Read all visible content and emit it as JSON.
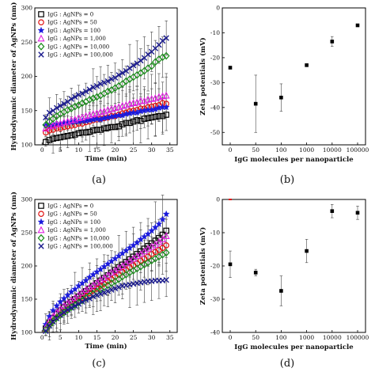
{
  "figure": {
    "panel_labels": [
      "(a)",
      "(b)",
      "(c)",
      "(d)"
    ]
  },
  "chart_data": [
    {
      "panel": "(a)",
      "type": "scatter",
      "xlabel": "Time (min)",
      "ylabel": "Hydrodynamic diameter of AgNPs (nm)",
      "xlim": [
        -2,
        37
      ],
      "ylim": [
        100,
        300
      ],
      "xticks": [
        0,
        5,
        10,
        15,
        20,
        25,
        30,
        35
      ],
      "yticks": [
        100,
        150,
        200,
        250,
        300
      ],
      "legend_position": "top-left",
      "x": [
        1,
        2,
        3,
        4,
        5,
        6,
        7,
        8,
        9,
        10,
        11,
        12,
        13,
        14,
        15,
        16,
        17,
        18,
        19,
        20,
        21,
        22,
        23,
        24,
        25,
        26,
        27,
        28,
        29,
        30,
        31,
        32,
        33,
        34
      ],
      "series": [
        {
          "name": "IgG : AgNPs = 0",
          "marker": "square-open",
          "color": "#000000",
          "values": [
            104,
            107,
            109,
            110,
            111,
            112,
            113,
            114,
            115,
            117,
            118,
            118,
            119,
            121,
            122,
            122,
            124,
            125,
            126,
            126,
            127,
            130,
            132,
            132,
            134,
            136,
            135,
            138,
            139,
            140,
            141,
            142,
            142,
            144
          ]
        },
        {
          "name": "IgG : AgNPs = 50",
          "marker": "circle-open",
          "color": "#e01010",
          "values": [
            118,
            121,
            122,
            124,
            124,
            126,
            127,
            128,
            129,
            131,
            131,
            133,
            134,
            136,
            137,
            138,
            139,
            140,
            142,
            142,
            144,
            146,
            147,
            149,
            150,
            151,
            153,
            153,
            155,
            156,
            157,
            158,
            161,
            160
          ]
        },
        {
          "name": "IgG : AgNPs = 100",
          "marker": "star",
          "color": "#1a1adc",
          "values": [
            128,
            129,
            129,
            131,
            131,
            132,
            132,
            133,
            134,
            134,
            135,
            135,
            136,
            137,
            138,
            137,
            139,
            140,
            141,
            142,
            143,
            143,
            145,
            146,
            147,
            147,
            149,
            150,
            151,
            151,
            152,
            154,
            155,
            155
          ]
        },
        {
          "name": "IgG : AgNPs = 1,000",
          "marker": "triangle-open",
          "color": "#e020e0",
          "values": [
            124,
            127,
            128,
            130,
            131,
            133,
            134,
            136,
            137,
            139,
            140,
            142,
            143,
            145,
            146,
            148,
            149,
            151,
            152,
            154,
            155,
            157,
            158,
            160,
            161,
            162,
            164,
            164,
            166,
            167,
            168,
            170,
            171,
            172
          ]
        },
        {
          "name": "IgG : AgNPs = 10,000",
          "marker": "diamond-open",
          "color": "#1a8c1a",
          "values": [
            129,
            134,
            138,
            142,
            145,
            148,
            151,
            153,
            156,
            158,
            161,
            163,
            166,
            168,
            170,
            172,
            175,
            178,
            180,
            183,
            186,
            189,
            193,
            196,
            199,
            202,
            205,
            208,
            212,
            215,
            221,
            225,
            228,
            230
          ]
        },
        {
          "name": "IgG : AgNPs = 100,000",
          "marker": "x",
          "color": "#1a1a8c",
          "values": [
            140,
            147,
            150,
            154,
            157,
            160,
            163,
            167,
            170,
            173,
            175,
            178,
            181,
            184,
            186,
            189,
            191,
            193,
            196,
            198,
            202,
            205,
            208,
            212,
            216,
            219,
            223,
            227,
            232,
            236,
            241,
            246,
            252,
            256
          ]
        }
      ]
    },
    {
      "panel": "(b)",
      "type": "scatter",
      "xlabel": "IgG molecules per nanoparticle",
      "ylabel": "Zeta potentials (mV)",
      "categories": [
        "0",
        "50",
        "100",
        "1000",
        "10000",
        "100000"
      ],
      "ylim": [
        -55,
        0
      ],
      "yticks": [
        0,
        -10,
        -20,
        -30,
        -40,
        -50
      ],
      "values": [
        -24,
        -38.5,
        -36,
        -23,
        -13.5,
        -7
      ],
      "errors": [
        0,
        11.5,
        5.5,
        0,
        2,
        0
      ]
    },
    {
      "panel": "(c)",
      "type": "scatter",
      "xlabel": "Time (min)",
      "ylabel": "Hydrodynamic diameter of AgNPs (nm)",
      "xlim": [
        -2,
        37
      ],
      "ylim": [
        100,
        300
      ],
      "xticks": [
        0,
        5,
        10,
        15,
        20,
        25,
        30,
        35
      ],
      "yticks": [
        100,
        150,
        200,
        250,
        300
      ],
      "legend_position": "top-left",
      "x": [
        1,
        2,
        3,
        4,
        5,
        6,
        7,
        8,
        9,
        10,
        11,
        12,
        13,
        14,
        15,
        16,
        17,
        18,
        19,
        20,
        21,
        22,
        23,
        24,
        25,
        26,
        27,
        28,
        29,
        30,
        31,
        32,
        33,
        34
      ],
      "series": [
        {
          "name": "IgG : AgNPs = 0",
          "marker": "square-open",
          "color": "#000000",
          "values": [
            106,
            115,
            122,
            128,
            133,
            138,
            142,
            146,
            150,
            154,
            158,
            162,
            166,
            170,
            174,
            178,
            182,
            186,
            190,
            194,
            198,
            202,
            206,
            210,
            214,
            218,
            222,
            226,
            230,
            234,
            238,
            242,
            247,
            253
          ]
        },
        {
          "name": "IgG : AgNPs = 50",
          "marker": "circle-open",
          "color": "#e01010",
          "values": [
            104,
            112,
            118,
            123,
            128,
            132,
            136,
            140,
            144,
            148,
            152,
            155,
            159,
            163,
            166,
            170,
            173,
            177,
            180,
            184,
            187,
            191,
            194,
            198,
            201,
            204,
            208,
            211,
            214,
            218,
            221,
            224,
            227,
            231
          ]
        },
        {
          "name": "IgG : AgNPs = 100",
          "marker": "star",
          "color": "#1a1adc",
          "values": [
            112,
            124,
            133,
            140,
            146,
            151,
            156,
            161,
            165,
            170,
            174,
            178,
            183,
            187,
            191,
            195,
            199,
            203,
            207,
            211,
            215,
            219,
            223,
            227,
            231,
            235,
            240,
            244,
            248,
            253,
            258,
            263,
            270,
            278
          ]
        },
        {
          "name": "IgG : AgNPs = 1,000",
          "marker": "triangle-open",
          "color": "#e020e0",
          "values": [
            107,
            117,
            124,
            130,
            135,
            140,
            144,
            148,
            152,
            156,
            160,
            164,
            168,
            171,
            175,
            179,
            182,
            186,
            190,
            193,
            197,
            200,
            204,
            208,
            211,
            215,
            218,
            222,
            226,
            229,
            232,
            236,
            240,
            245
          ]
        },
        {
          "name": "IgG : AgNPs = 10,000",
          "marker": "diamond-open",
          "color": "#1a8c1a",
          "values": [
            104,
            111,
            117,
            122,
            126,
            130,
            134,
            138,
            141,
            145,
            148,
            152,
            155,
            158,
            161,
            165,
            168,
            171,
            174,
            177,
            180,
            184,
            187,
            190,
            193,
            196,
            199,
            202,
            205,
            208,
            211,
            214,
            217,
            220
          ]
        },
        {
          "name": "IgG : AgNPs = 100,000",
          "marker": "x",
          "color": "#1a1a8c",
          "values": [
            102,
            110,
            116,
            121,
            126,
            130,
            134,
            137,
            140,
            143,
            146,
            149,
            151,
            154,
            156,
            158,
            160,
            162,
            164,
            166,
            168,
            170,
            171,
            172,
            173,
            174,
            175,
            176,
            177,
            177,
            178,
            178,
            178,
            179
          ]
        }
      ]
    },
    {
      "panel": "(d)",
      "type": "scatter",
      "xlabel": "IgG molecules per nanoparticle",
      "ylabel": "Zeta potentials (mV)",
      "categories": [
        "0",
        "50",
        "100",
        "1000",
        "10000",
        "100000"
      ],
      "ylim": [
        -40,
        0
      ],
      "yticks": [
        0,
        -10,
        -20,
        -30,
        -40
      ],
      "values": [
        -19.5,
        -22,
        -27.5,
        -15.5,
        -3.5,
        -4
      ],
      "errors": [
        4,
        1,
        4.5,
        3.5,
        2,
        2
      ]
    }
  ]
}
